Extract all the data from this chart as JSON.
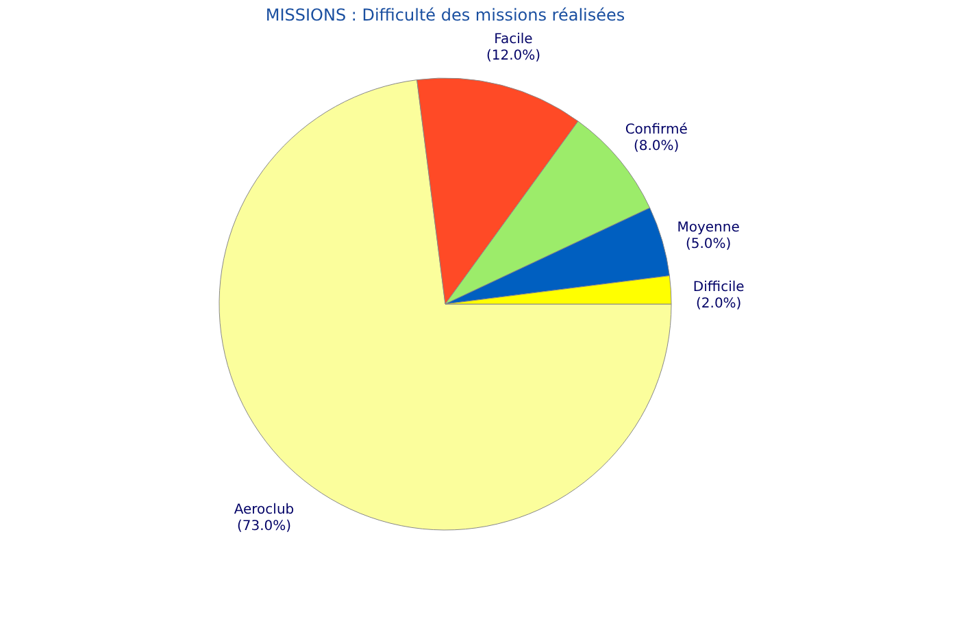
{
  "chart_data": {
    "type": "pie",
    "title": "MISSIONS : Difficulté des missions réalisées",
    "categories": [
      "Aeroclub",
      "Facile",
      "Confirmé",
      "Moyenne",
      "Difficile"
    ],
    "values": [
      73,
      12,
      8,
      5,
      2
    ],
    "colors": [
      "#fbfe9c",
      "#ff4a26",
      "#9cec6a",
      "#005fc0",
      "#ffff00"
    ],
    "value_labels": [
      "(73.0%)",
      "(12.0%)",
      "(8.0%)",
      "(5.0%)",
      "(2.0%)"
    ],
    "legend": false
  }
}
